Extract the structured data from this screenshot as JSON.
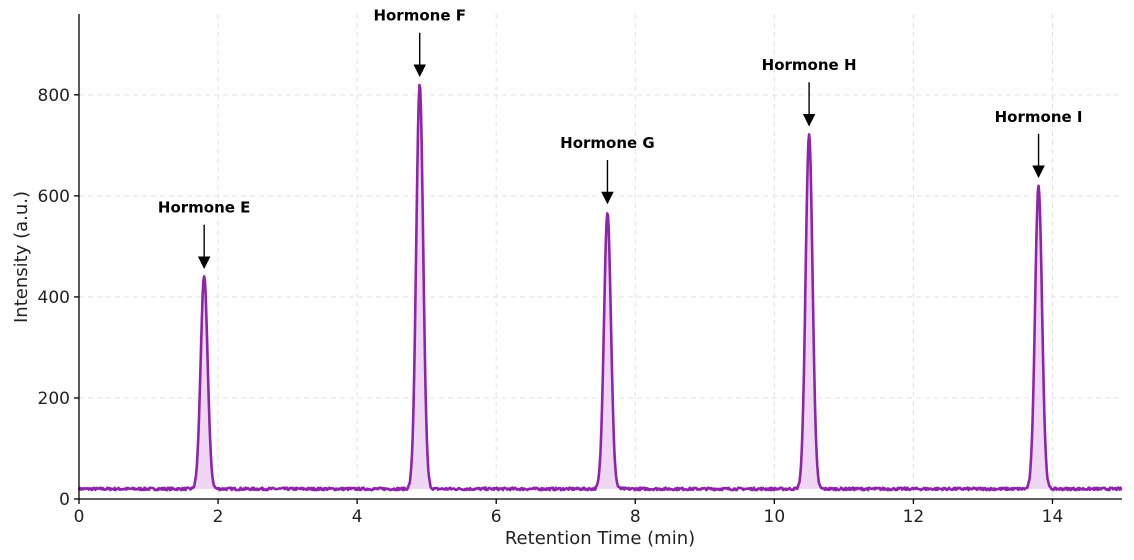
{
  "chart_data": {
    "type": "line",
    "title": "",
    "xlabel": "Retention Time (min)",
    "ylabel": "Intensity (a.u.)",
    "xlim": [
      0,
      15
    ],
    "ylim": [
      0,
      960
    ],
    "xticks": [
      0,
      2,
      4,
      6,
      8,
      10,
      12,
      14
    ],
    "yticks": [
      0,
      200,
      400,
      600,
      800
    ],
    "grid": true,
    "baseline": 20,
    "series_color": "#8e24aa",
    "fill_color": "#e9c9ef",
    "peaks": [
      {
        "label": "Hormone E",
        "x": 1.8,
        "y": 440
      },
      {
        "label": "Hormone F",
        "x": 4.9,
        "y": 820
      },
      {
        "label": "Hormone G",
        "x": 7.6,
        "y": 568
      },
      {
        "label": "Hormone H",
        "x": 10.5,
        "y": 722
      },
      {
        "label": "Hormone I",
        "x": 13.8,
        "y": 620
      }
    ]
  }
}
